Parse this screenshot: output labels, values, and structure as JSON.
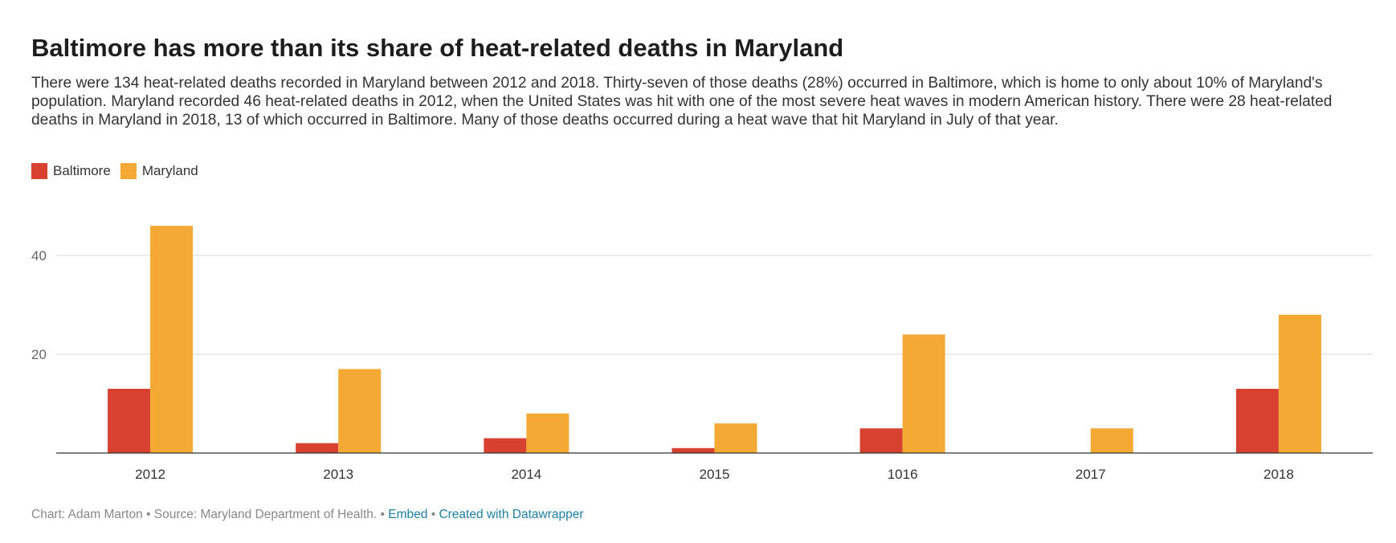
{
  "title": "Baltimore has more than its share of heat-related deaths in Maryland",
  "description": "There were 134 heat-related deaths recorded in Maryland between 2012 and 2018. Thirty-seven of those deaths (28%) occurred in Baltimore, which is home to only about 10% of Maryland's population. Maryland recorded 46 heat-related deaths in 2012, when the United States was hit with one of the most severe heat waves in modern American history. There were 28 heat-related deaths in Maryland in 2018, 13 of which occurred in Baltimore. Many of those deaths occurred during a heat wave that hit Maryland in July of that year.",
  "footer": {
    "chart_by": "Chart: Adam Marton",
    "source": "Source: Maryland Department of Health.",
    "separator": "•",
    "embed": "Embed",
    "created_with": "Created with Datawrapper"
  },
  "chart_data": {
    "type": "bar",
    "categories": [
      "2012",
      "2013",
      "2014",
      "2015",
      "1016",
      "2017",
      "2018"
    ],
    "series": [
      {
        "name": "Baltimore",
        "color": "#d8412f",
        "values": [
          13,
          2,
          3,
          1,
          5,
          0,
          13
        ]
      },
      {
        "name": "Maryland",
        "color": "#f4a935",
        "values": [
          46,
          17,
          8,
          6,
          24,
          5,
          28
        ]
      }
    ],
    "yticks": [
      20,
      40
    ],
    "ylim": [
      0,
      48
    ],
    "grid": true,
    "legend_position": "top-left"
  }
}
